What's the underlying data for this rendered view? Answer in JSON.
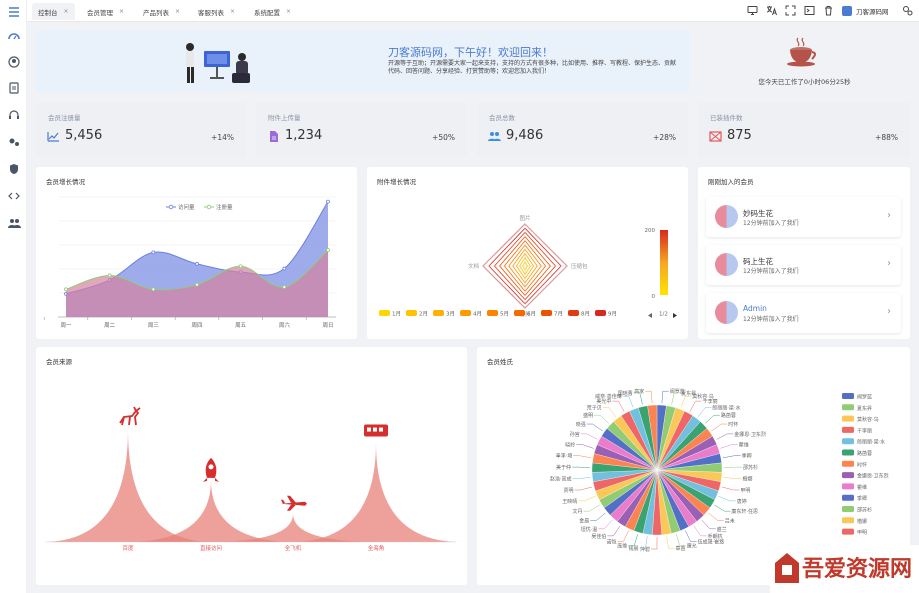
{
  "tabs": [
    {
      "label": "控制台",
      "active": true
    },
    {
      "label": "会员管理",
      "active": false
    },
    {
      "label": "产品列表",
      "active": false
    },
    {
      "label": "客服列表",
      "active": false
    },
    {
      "label": "系统配置",
      "active": false
    }
  ],
  "tab_close": "×",
  "top_icons": [
    "monitor-icon",
    "translate-icon",
    "fullscreen-icon",
    "terminal-icon",
    "trash-icon"
  ],
  "brand": {
    "name": "刀客源码网",
    "accent": "#4a7bd0"
  },
  "sidebar_icons": [
    "menu-icon",
    "dashboard-icon",
    "user-circle-icon",
    "clipboard-icon",
    "headset-icon",
    "gears-icon",
    "shield-icon",
    "code-icon",
    "users-icon"
  ],
  "welcome": {
    "title": "刀客源码网，下午好！欢迎回来！",
    "text": "开源等于互助；开源需要大家一起来支持，支持的方式有很多种，比如使用、推荐、写教程、保护生态、贡献代码、回答问题、分享经验、打赏赞助等；欢迎您加入我们！"
  },
  "worktime": {
    "text": "您今天已工作了0小时06分25秒"
  },
  "stats": [
    {
      "label": "会员注册量",
      "value": "5,456",
      "percent": "+14%",
      "icon": "line-chart-icon",
      "color": "#4a7bd0"
    },
    {
      "label": "附件上传量",
      "value": "1,234",
      "percent": "+50%",
      "icon": "file-icon",
      "color": "#9b6bd6"
    },
    {
      "label": "会员总数",
      "value": "9,486",
      "percent": "+28%",
      "icon": "users-icon",
      "color": "#3d8ee6"
    },
    {
      "label": "已装插件数",
      "value": "875",
      "percent": "+88%",
      "icon": "plugin-icon",
      "color": "#e8565a"
    }
  ],
  "member_growth": {
    "title": "会员增长情况"
  },
  "attach_growth": {
    "title": "附件增长情况"
  },
  "new_members": {
    "title": "刚刚加入的会员",
    "items": [
      {
        "name": "妙码生花",
        "desc": "12分钟前加入了我们"
      },
      {
        "name": "码上生花",
        "desc": "12分钟前加入了我们"
      },
      {
        "name": "Admin",
        "desc": "12分钟前加入了我们"
      }
    ],
    "arrow": "›"
  },
  "member_source": {
    "title": "会员来源"
  },
  "member_surname": {
    "title": "会员姓氏"
  },
  "chart_data": [
    {
      "type": "area",
      "title": "会员增长情况",
      "categories": [
        "周一",
        "周二",
        "周三",
        "周四",
        "周五",
        "周六",
        "周日"
      ],
      "series": [
        {
          "name": "访问量",
          "values": [
            100,
            160,
            280,
            230,
            195,
            210,
            500
          ],
          "color": "#6b7fe0"
        },
        {
          "name": "注册量",
          "values": [
            120,
            180,
            120,
            140,
            220,
            130,
            290
          ],
          "color": "#91cc75"
        }
      ],
      "ylim": [
        0,
        520
      ],
      "legend": "top-center",
      "grid": true
    },
    {
      "type": "radar",
      "title": "附件增长情况",
      "indicators": [
        "图片",
        "压缩包",
        "音频",
        "文档"
      ],
      "visual_map": {
        "min": 0,
        "max": 200,
        "max_label": "200",
        "min_label": "0"
      },
      "legend": [
        "1月",
        "2月",
        "3月",
        "4月",
        "5月",
        "6月",
        "7月",
        "8月",
        "9月"
      ],
      "legend_page": "1/2",
      "legend_color": "#ffd500"
    },
    {
      "type": "pictorialBar",
      "title": "会员来源",
      "categories": [
        "百度",
        "直接访问",
        "全飞机",
        "全海角"
      ],
      "values": [
        100,
        55,
        25,
        88
      ],
      "icons": [
        "deer-icon",
        "rocket-icon",
        "plane-icon",
        "train-icon"
      ],
      "color": "#e8827a",
      "label_color": "#e8565a"
    },
    {
      "type": "pie",
      "title": "会员姓氏",
      "labels": [
        "阀罗蓝",
        "夏东昇",
        "莫秋容·乌",
        "干李丽",
        "郎丽丽·梁·水",
        "路菡蓉",
        "时怀",
        "金娜恩·卫东烈",
        "瞿维",
        "季卿",
        "邵苏杉",
        "楷娜",
        "甲明",
        "唐婷",
        "廉东轩·任思",
        "吕未",
        "盛兰",
        "乔朗杭",
        "伍成晟·崔悠",
        "廉允",
        "章苗",
        "萍碧",
        "钱晨",
        "庞维",
        "诺恺",
        "吴佳伯",
        "坦忧·温",
        "金晨",
        "文丹",
        "王映晴",
        "贾明",
        "赵浩·高成",
        "美于仲",
        "奉李·埼",
        "晓岭",
        "孙宫",
        "晓强",
        "盛明",
        "荒子贝",
        "美光中",
        "威奈·善佳琳",
        "国瑶曹",
        "高家"
      ],
      "legend": [
        "阀罗蓝",
        "夏东昇",
        "莫秋容·乌",
        "干李丽",
        "郎丽丽·梁·水",
        "路菡蓉",
        "时怀",
        "金娜恩·卫东烈",
        "瞿维",
        "季卿",
        "邵苏杉",
        "楷娜",
        "甲明"
      ],
      "colors": [
        "#5470c6",
        "#91cc75",
        "#fac858",
        "#ee6666",
        "#73c0de",
        "#3ba272",
        "#fc8452",
        "#9a60b4",
        "#ea7ccc"
      ]
    }
  ]
}
